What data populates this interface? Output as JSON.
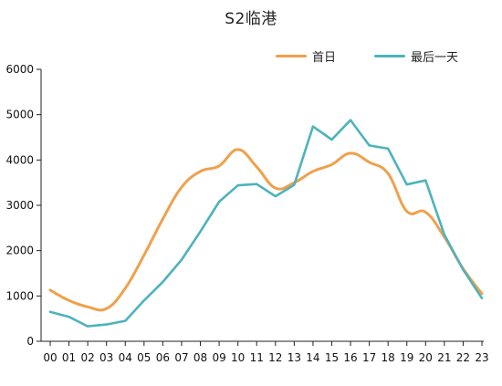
{
  "chart_data": {
    "type": "line",
    "title": "S2临港",
    "xlabel": "",
    "ylabel": "",
    "ylim": [
      0,
      6000
    ],
    "yticks": [
      0,
      1000,
      2000,
      3000,
      4000,
      5000,
      6000
    ],
    "grid": false,
    "legend_position": "top-right",
    "categories": [
      "00",
      "01",
      "02",
      "03",
      "04",
      "05",
      "06",
      "07",
      "08",
      "09",
      "10",
      "11",
      "12",
      "13",
      "14",
      "15",
      "16",
      "17",
      "18",
      "19",
      "20",
      "21",
      "22",
      "23"
    ],
    "series": [
      {
        "name": "首日",
        "color": "#f0a04b",
        "values": [
          1130,
          900,
          760,
          720,
          1170,
          1900,
          2700,
          3400,
          3750,
          3870,
          4230,
          3850,
          3380,
          3500,
          3750,
          3900,
          4150,
          3950,
          3700,
          2870,
          2850,
          2300,
          1600,
          1050
        ]
      },
      {
        "name": "最后一天",
        "color": "#4db3bd",
        "values": [
          650,
          540,
          330,
          370,
          450,
          900,
          1310,
          1800,
          2420,
          3080,
          3440,
          3470,
          3200,
          3450,
          4740,
          4450,
          4880,
          4320,
          4250,
          3460,
          3550,
          2350,
          1580,
          950
        ]
      }
    ]
  }
}
